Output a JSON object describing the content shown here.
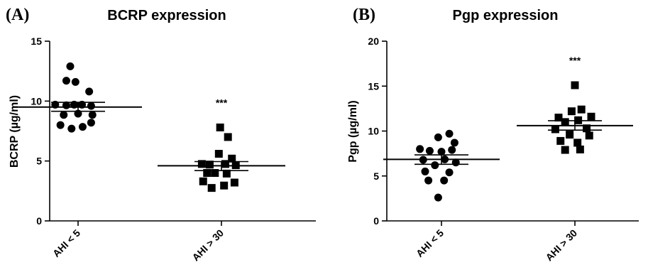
{
  "chart_data": [
    {
      "type": "scatter",
      "panel": "(A)",
      "title": "BCRP expression",
      "xlabel": "",
      "ylabel": "BCRP (µg/ml)",
      "ylim": [
        0,
        15
      ],
      "yticks": [
        0,
        5,
        10,
        15
      ],
      "grid": false,
      "categories": [
        "AHI < 5",
        "AHI > 30"
      ],
      "series": [
        {
          "marker": "circle",
          "mean": 9.5,
          "sem_low": 9.15,
          "sem_high": 9.9,
          "points": [
            {
              "x": -0.12,
              "y": 12.9
            },
            {
              "x": -0.18,
              "y": 11.7
            },
            {
              "x": -0.04,
              "y": 11.6
            },
            {
              "x": 0.17,
              "y": 10.8
            },
            {
              "x": -0.35,
              "y": 9.7
            },
            {
              "x": -0.18,
              "y": 9.65
            },
            {
              "x": -0.06,
              "y": 9.7
            },
            {
              "x": 0.06,
              "y": 9.7
            },
            {
              "x": 0.2,
              "y": 9.6
            },
            {
              "x": -0.22,
              "y": 8.85
            },
            {
              "x": 0.0,
              "y": 8.95
            },
            {
              "x": 0.22,
              "y": 8.85
            },
            {
              "x": -0.27,
              "y": 8.0
            },
            {
              "x": 0.2,
              "y": 8.2
            },
            {
              "x": -0.1,
              "y": 7.7
            },
            {
              "x": 0.07,
              "y": 7.85
            }
          ]
        },
        {
          "marker": "square",
          "mean": 4.6,
          "sem_low": 4.2,
          "sem_high": 4.95,
          "significance": "***",
          "points": [
            {
              "x": -0.02,
              "y": 7.8
            },
            {
              "x": 0.1,
              "y": 7.0
            },
            {
              "x": -0.04,
              "y": 5.6
            },
            {
              "x": 0.16,
              "y": 5.2
            },
            {
              "x": -0.3,
              "y": 4.75
            },
            {
              "x": -0.18,
              "y": 4.7
            },
            {
              "x": 0.06,
              "y": 4.75
            },
            {
              "x": 0.22,
              "y": 4.65
            },
            {
              "x": -0.22,
              "y": 4.0
            },
            {
              "x": -0.1,
              "y": 4.0
            },
            {
              "x": 0.08,
              "y": 3.95
            },
            {
              "x": -0.28,
              "y": 3.3
            },
            {
              "x": 0.2,
              "y": 3.2
            },
            {
              "x": -0.15,
              "y": 2.75
            },
            {
              "x": 0.04,
              "y": 2.95
            }
          ]
        }
      ]
    },
    {
      "type": "scatter",
      "panel": "(B)",
      "title": "Pgp expression",
      "xlabel": "",
      "ylabel": "Pgp (µg/ml)",
      "ylim": [
        0,
        20
      ],
      "yticks": [
        0,
        5,
        10,
        15,
        20
      ],
      "grid": false,
      "categories": [
        "AHI < 5",
        "AHI > 30"
      ],
      "series": [
        {
          "marker": "circle",
          "mean": 6.85,
          "sem_low": 6.3,
          "sem_high": 7.35,
          "points": [
            {
              "x": 0.12,
              "y": 9.7
            },
            {
              "x": -0.05,
              "y": 9.3
            },
            {
              "x": 0.2,
              "y": 8.7
            },
            {
              "x": -0.33,
              "y": 8.0
            },
            {
              "x": -0.18,
              "y": 7.8
            },
            {
              "x": 0.0,
              "y": 7.7
            },
            {
              "x": 0.16,
              "y": 7.9
            },
            {
              "x": -0.28,
              "y": 6.8
            },
            {
              "x": 0.05,
              "y": 6.85
            },
            {
              "x": -0.1,
              "y": 6.2
            },
            {
              "x": 0.22,
              "y": 6.5
            },
            {
              "x": -0.25,
              "y": 5.5
            },
            {
              "x": 0.12,
              "y": 5.4
            },
            {
              "x": -0.2,
              "y": 4.5
            },
            {
              "x": 0.04,
              "y": 4.5
            },
            {
              "x": -0.05,
              "y": 2.6
            }
          ]
        },
        {
          "marker": "square",
          "mean": 10.6,
          "sem_low": 10.1,
          "sem_high": 11.15,
          "significance": "***",
          "points": [
            {
              "x": 0.0,
              "y": 15.1
            },
            {
              "x": -0.05,
              "y": 12.2
            },
            {
              "x": 0.1,
              "y": 12.4
            },
            {
              "x": -0.25,
              "y": 11.5
            },
            {
              "x": 0.25,
              "y": 11.6
            },
            {
              "x": -0.15,
              "y": 11.0
            },
            {
              "x": 0.05,
              "y": 11.2
            },
            {
              "x": -0.3,
              "y": 10.2
            },
            {
              "x": 0.18,
              "y": 10.3
            },
            {
              "x": -0.08,
              "y": 9.6
            },
            {
              "x": 0.22,
              "y": 9.5
            },
            {
              "x": -0.22,
              "y": 8.9
            },
            {
              "x": 0.04,
              "y": 8.7
            },
            {
              "x": -0.15,
              "y": 7.9
            },
            {
              "x": 0.08,
              "y": 7.95
            }
          ]
        }
      ]
    }
  ]
}
